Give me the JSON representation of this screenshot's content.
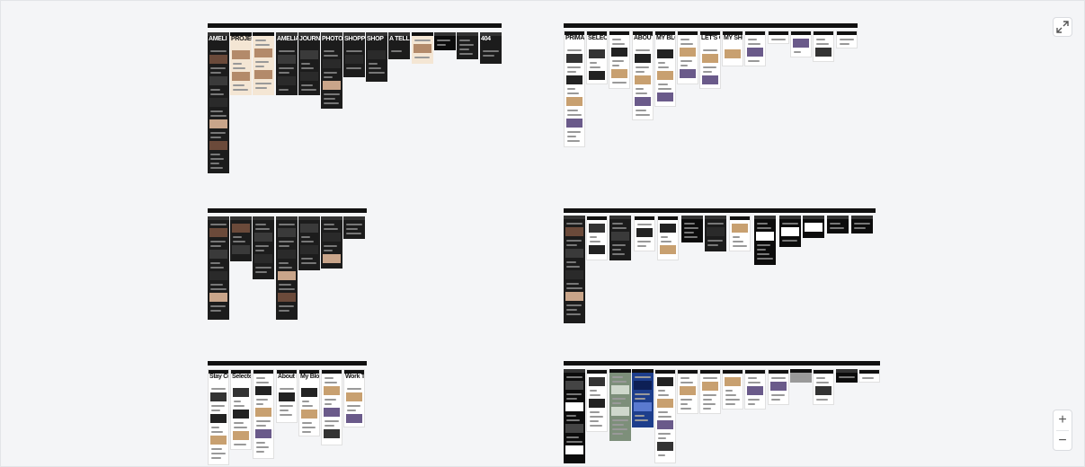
{
  "controls": {
    "fullscreen_icon": "expand-icon",
    "zoom_in_label": "+",
    "zoom_out_label": "−"
  },
  "boards": [
    {
      "name": "board-1",
      "frames": [
        {
          "theme": "dark",
          "title": "AMELI"
        },
        {
          "theme": "cream",
          "title": "PROJECT"
        },
        {
          "theme": "cream",
          "title": ""
        },
        {
          "theme": "dark",
          "title": "AMELIA GREEN"
        },
        {
          "theme": "dark",
          "title": "JOURNEY"
        },
        {
          "theme": "dark",
          "title": "PHOTOS"
        },
        {
          "theme": "dark",
          "title": "SHOPPIN"
        },
        {
          "theme": "dark",
          "title": "SHOP"
        },
        {
          "theme": "dark",
          "title": "A TELL"
        },
        {
          "theme": "cream",
          "title": ""
        },
        {
          "theme": "black",
          "title": ""
        },
        {
          "theme": "dark",
          "title": ""
        },
        {
          "theme": "dark",
          "title": "404"
        }
      ]
    },
    {
      "name": "board-2",
      "frames": [
        {
          "theme": "light",
          "title": "PRIMARY"
        },
        {
          "theme": "light",
          "title": "SELECTED WORK"
        },
        {
          "theme": "light",
          "title": ""
        },
        {
          "theme": "light",
          "title": "ABOUT ME"
        },
        {
          "theme": "light",
          "title": "MY BLOG"
        },
        {
          "theme": "light",
          "title": ""
        },
        {
          "theme": "light",
          "title": "LET'S CHAT"
        },
        {
          "theme": "light",
          "title": "MY SHOP"
        },
        {
          "theme": "light",
          "title": ""
        },
        {
          "theme": "light",
          "title": ""
        },
        {
          "theme": "light",
          "title": ""
        },
        {
          "theme": "light",
          "title": ""
        },
        {
          "theme": "light",
          "title": ""
        }
      ]
    },
    {
      "name": "board-3",
      "frames": [
        {
          "theme": "dark",
          "title": ""
        },
        {
          "theme": "dark",
          "title": ""
        },
        {
          "theme": "dark",
          "title": ""
        },
        {
          "theme": "dark",
          "title": ""
        },
        {
          "theme": "dark",
          "title": ""
        },
        {
          "theme": "dark",
          "title": ""
        },
        {
          "theme": "dark",
          "title": ""
        }
      ]
    },
    {
      "name": "board-4",
      "frames": [
        {
          "theme": "dark",
          "title": ""
        },
        {
          "theme": "light",
          "title": ""
        },
        {
          "theme": "dark",
          "title": ""
        },
        {
          "theme": "light",
          "title": ""
        },
        {
          "theme": "light",
          "title": ""
        },
        {
          "theme": "black",
          "title": ""
        },
        {
          "theme": "dark",
          "title": ""
        },
        {
          "theme": "light",
          "title": ""
        },
        {
          "theme": "black",
          "title": ""
        },
        {
          "theme": "black",
          "title": ""
        },
        {
          "theme": "black",
          "title": ""
        },
        {
          "theme": "black",
          "title": ""
        },
        {
          "theme": "black",
          "title": ""
        }
      ]
    },
    {
      "name": "board-5",
      "frames": [
        {
          "theme": "light",
          "title": "Stay Curious"
        },
        {
          "theme": "light",
          "title": "Selected Work"
        },
        {
          "theme": "light",
          "title": ""
        },
        {
          "theme": "light",
          "title": "About Me"
        },
        {
          "theme": "light",
          "title": "My Blog"
        },
        {
          "theme": "light",
          "title": ""
        },
        {
          "theme": "light",
          "title": "Work Together"
        }
      ]
    },
    {
      "name": "board-6",
      "frames": [
        {
          "theme": "black",
          "title": ""
        },
        {
          "theme": "light",
          "title": ""
        },
        {
          "theme": "green",
          "title": ""
        },
        {
          "theme": "blue",
          "title": ""
        },
        {
          "theme": "light",
          "title": ""
        },
        {
          "theme": "light",
          "title": ""
        },
        {
          "theme": "light",
          "title": ""
        },
        {
          "theme": "light",
          "title": ""
        },
        {
          "theme": "light",
          "title": ""
        },
        {
          "theme": "light",
          "title": ""
        },
        {
          "theme": "gray",
          "title": ""
        },
        {
          "theme": "light",
          "title": ""
        },
        {
          "theme": "black",
          "title": ""
        },
        {
          "theme": "light",
          "title": ""
        }
      ]
    }
  ]
}
